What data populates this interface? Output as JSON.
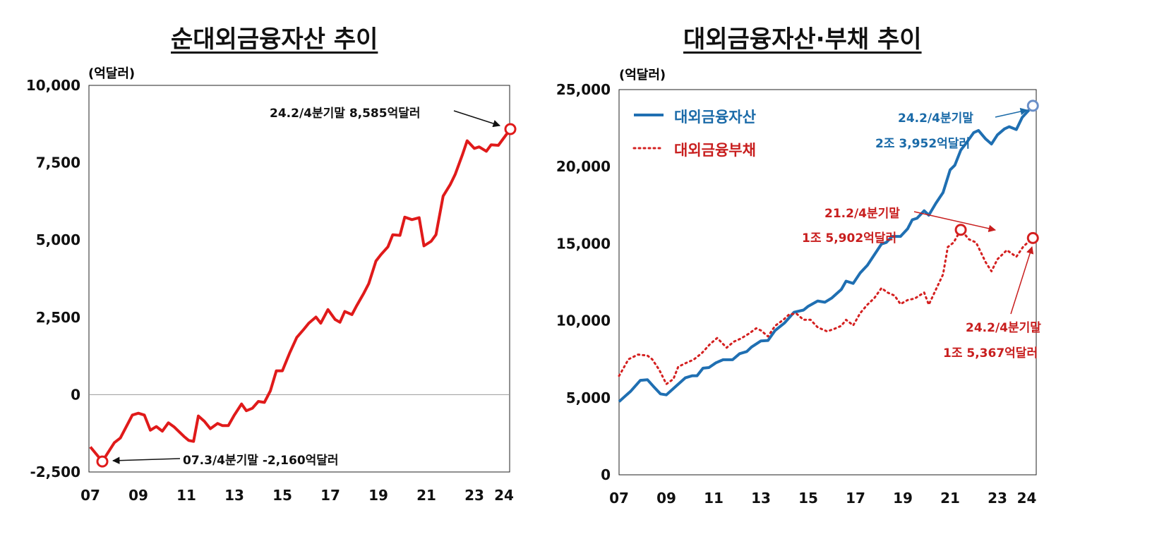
{
  "colors": {
    "net": "#e01a1a",
    "assets": "#1f6fb2",
    "liabilities": "#d42020",
    "assets_text": "#1a6aa8",
    "liab_text": "#c81e1e"
  },
  "chart_data": [
    {
      "type": "line",
      "title": "순대외금융자산 추이",
      "ylabel": "(억달러)",
      "ylim": [
        -2500,
        10000
      ],
      "yticks": [
        10000,
        7500,
        5000,
        2500,
        0,
        -2500
      ],
      "ytick_labels": [
        "10,000",
        "7,500",
        "5,000",
        "2,500",
        "0",
        "-2,500"
      ],
      "xticks": [
        2007,
        2009,
        2011,
        2013,
        2015,
        2017,
        2019,
        2021,
        2023,
        2024
      ],
      "xtick_labels": [
        "07",
        "09",
        "11",
        "13",
        "15",
        "17",
        "19",
        "21",
        "23",
        "24"
      ],
      "series": [
        {
          "name": "순대외금융자산",
          "style": "solid",
          "x": [
            2007.0,
            2007.5,
            2008.0,
            2008.25,
            2008.75,
            2009.0,
            2009.25,
            2009.5,
            2009.75,
            2010.0,
            2010.25,
            2010.5,
            2010.9,
            2011.1,
            2011.3,
            2011.5,
            2011.75,
            2012.0,
            2012.3,
            2012.5,
            2012.75,
            2013.0,
            2013.3,
            2013.5,
            2013.75,
            2014.0,
            2014.25,
            2014.5,
            2014.75,
            2015.0,
            2015.3,
            2015.6,
            2015.9,
            2016.1,
            2016.4,
            2016.6,
            2016.9,
            2017.2,
            2017.4,
            2017.6,
            2017.9,
            2018.1,
            2018.4,
            2018.6,
            2018.9,
            2019.1,
            2019.4,
            2019.6,
            2019.9,
            2020.1,
            2020.4,
            2020.7,
            2020.9,
            2021.2,
            2021.4,
            2021.7,
            2022.0,
            2022.2,
            2022.5,
            2022.7,
            2023.0,
            2023.2,
            2023.5,
            2023.7,
            2024.0,
            2024.5
          ],
          "y": [
            -1690,
            -2160,
            -1550,
            -1400,
            -660,
            -600,
            -660,
            -1150,
            -1030,
            -1180,
            -910,
            -1050,
            -1350,
            -1480,
            -1510,
            -690,
            -860,
            -1100,
            -930,
            -1000,
            -1000,
            -660,
            -300,
            -520,
            -440,
            -220,
            -250,
            120,
            770,
            770,
            1340,
            1850,
            2120,
            2310,
            2510,
            2310,
            2750,
            2430,
            2340,
            2690,
            2590,
            2880,
            3290,
            3590,
            4320,
            4520,
            4780,
            5170,
            5150,
            5740,
            5660,
            5720,
            4810,
            4960,
            5170,
            6420,
            6800,
            7120,
            7750,
            8210,
            7960,
            8010,
            7870,
            8080,
            8060,
            8585
          ]
        }
      ],
      "annotations": [
        {
          "text": "24.2/4분기말  8,585억달러",
          "x": 2024.5,
          "y": 8585
        },
        {
          "text": "07.3/4분기말  -2,160억달러",
          "x": 2007.5,
          "y": -2160
        }
      ]
    },
    {
      "type": "line",
      "title": "대외금융자산·부채 추이",
      "ylabel": "(억달러)",
      "ylim": [
        0,
        25000
      ],
      "yticks": [
        25000,
        20000,
        15000,
        10000,
        5000,
        0
      ],
      "ytick_labels": [
        "25,000",
        "20,000",
        "15,000",
        "10,000",
        "5,000",
        "0"
      ],
      "xticks": [
        2007,
        2009,
        2011,
        2013,
        2015,
        2017,
        2019,
        2021,
        2023,
        2024
      ],
      "xtick_labels": [
        "07",
        "09",
        "11",
        "13",
        "15",
        "17",
        "19",
        "21",
        "23",
        "24"
      ],
      "legend": {
        "placement": "top-left",
        "entries": [
          "대외금융자산",
          "대외금융부채"
        ]
      },
      "series": [
        {
          "name": "대외금융자산",
          "style": "solid",
          "x": [
            2007.0,
            2007.5,
            2007.9,
            2008.2,
            2008.45,
            2008.75,
            2009.0,
            2009.4,
            2009.8,
            2010.1,
            2010.3,
            2010.55,
            2010.8,
            2011.1,
            2011.4,
            2011.8,
            2012.1,
            2012.4,
            2012.6,
            2013.0,
            2013.3,
            2013.6,
            2014.0,
            2014.4,
            2014.8,
            2015.0,
            2015.4,
            2015.7,
            2016.0,
            2016.4,
            2016.6,
            2016.9,
            2017.2,
            2017.5,
            2017.8,
            2018.1,
            2018.3,
            2018.55,
            2018.9,
            2019.2,
            2019.4,
            2019.6,
            2019.9,
            2020.1,
            2020.4,
            2020.7,
            2021.0,
            2021.2,
            2021.45,
            2021.7,
            2022.0,
            2022.2,
            2022.5,
            2022.75,
            2023.0,
            2023.3,
            2023.5,
            2023.8,
            2024.05,
            2024.5
          ],
          "y": [
            4750,
            5440,
            6130,
            6170,
            5740,
            5250,
            5190,
            5740,
            6290,
            6430,
            6430,
            6920,
            6960,
            7270,
            7470,
            7470,
            7860,
            8000,
            8290,
            8690,
            8720,
            9370,
            9860,
            10550,
            10690,
            10940,
            11280,
            11200,
            11480,
            12030,
            12570,
            12420,
            13110,
            13600,
            14290,
            14980,
            15080,
            15470,
            15470,
            15960,
            16550,
            16650,
            17140,
            16850,
            17630,
            18320,
            19790,
            20090,
            21070,
            21570,
            22210,
            22350,
            21800,
            21470,
            22060,
            22450,
            22590,
            22410,
            23200,
            23952
          ]
        },
        {
          "name": "대외금융부채",
          "style": "dotted",
          "x": [
            2007.0,
            2007.4,
            2007.8,
            2008.2,
            2008.4,
            2008.7,
            2009.0,
            2009.3,
            2009.5,
            2009.85,
            2010.15,
            2010.5,
            2010.85,
            2011.15,
            2011.55,
            2011.85,
            2012.15,
            2012.5,
            2012.8,
            2013.0,
            2013.3,
            2013.6,
            2013.95,
            2014.2,
            2014.5,
            2014.8,
            2015.1,
            2015.4,
            2015.8,
            2016.1,
            2016.4,
            2016.6,
            2016.9,
            2017.2,
            2017.5,
            2017.8,
            2018.1,
            2018.35,
            2018.65,
            2018.9,
            2019.2,
            2019.5,
            2019.9,
            2020.1,
            2020.4,
            2020.7,
            2020.9,
            2021.15,
            2021.45,
            2021.8,
            2022.1,
            2022.5,
            2022.75,
            2023.0,
            2023.4,
            2023.8,
            2024.1,
            2024.5
          ],
          "y": [
            6420,
            7500,
            7800,
            7740,
            7500,
            6810,
            5890,
            6220,
            7010,
            7270,
            7470,
            7900,
            8490,
            8880,
            8250,
            8640,
            8840,
            9170,
            9510,
            9370,
            8980,
            9670,
            10060,
            10420,
            10460,
            10060,
            10060,
            9570,
            9310,
            9470,
            9670,
            10060,
            9700,
            10500,
            11040,
            11480,
            12120,
            11830,
            11630,
            11080,
            11340,
            11440,
            11830,
            11040,
            12030,
            13010,
            14780,
            15080,
            15902,
            15280,
            15080,
            13800,
            13210,
            13990,
            14580,
            14150,
            14820,
            15367
          ]
        }
      ],
      "annotations": [
        {
          "line1": "24.2/4분기말",
          "line2": "2조 3,952억달러",
          "x": 2024.5,
          "y": 23952,
          "series": "대외금융자산"
        },
        {
          "line1": "21.2/4분기말",
          "line2": "1조 5,902억달러",
          "x": 2021.45,
          "y": 15902,
          "series": "대외금융부채"
        },
        {
          "line1": "24.2/4분기말",
          "line2": "1조 5,367억달러",
          "x": 2024.5,
          "y": 15367,
          "series": "대외금융부채"
        }
      ]
    }
  ]
}
